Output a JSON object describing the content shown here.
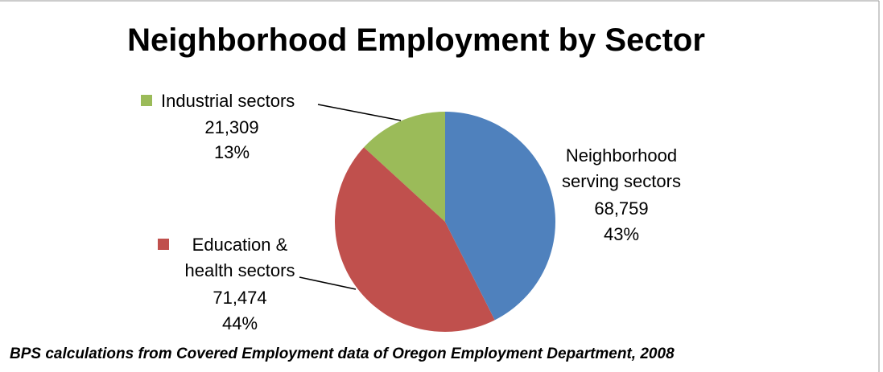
{
  "chart_data": {
    "type": "pie",
    "title": "Neighborhood Employment by Sector",
    "categories": [
      "Neighborhood serving sectors",
      "Education & health sectors",
      "Industrial sectors"
    ],
    "values": [
      68759,
      71474,
      21309
    ],
    "value_labels": [
      "68,759",
      "71,474",
      "21,309"
    ],
    "percent_labels": [
      "43%",
      "44%",
      "13%"
    ],
    "colors": [
      "#4f81bd",
      "#c0504d",
      "#9bbb59"
    ],
    "note": "BPS calculations from Covered Employment data of Oregon Employment Department, 2008"
  }
}
